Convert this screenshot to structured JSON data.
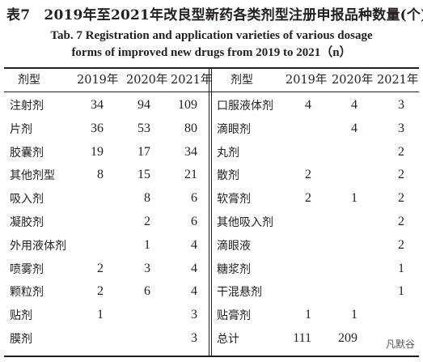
{
  "title_cn": "表7　2019年至2021年改良型新药各类剂型注册申报品种数量(个)",
  "title_en_line1": "Tab. 7   Registration and application varieties of various dosage",
  "title_en_line2": "forms of improved new drugs from 2019 to 2021（n）",
  "headers": {
    "form": "剂型",
    "y2019": "2019年",
    "y2020": "2020年",
    "y2021": "2021年"
  },
  "left_rows": [
    {
      "name": "注射剂",
      "v2019": "34",
      "v2020": "94",
      "v2021": "109"
    },
    {
      "name": "片剂",
      "v2019": "36",
      "v2020": "53",
      "v2021": "80"
    },
    {
      "name": "胶囊剂",
      "v2019": "19",
      "v2020": "17",
      "v2021": "34"
    },
    {
      "name": "其他剂型",
      "v2019": "8",
      "v2020": "15",
      "v2021": "21"
    },
    {
      "name": "吸入剂",
      "v2019": "",
      "v2020": "8",
      "v2021": "6"
    },
    {
      "name": "凝胶剂",
      "v2019": "",
      "v2020": "2",
      "v2021": "6"
    },
    {
      "name": "外用液体剂",
      "v2019": "",
      "v2020": "1",
      "v2021": "4"
    },
    {
      "name": "喷雾剂",
      "v2019": "2",
      "v2020": "3",
      "v2021": "4"
    },
    {
      "name": "颗粒剂",
      "v2019": "2",
      "v2020": "6",
      "v2021": "4"
    },
    {
      "name": "贴剂",
      "v2019": "1",
      "v2020": "",
      "v2021": "3"
    },
    {
      "name": "膜剂",
      "v2019": "",
      "v2020": "",
      "v2021": "3"
    }
  ],
  "right_rows": [
    {
      "name": "口服液体剂",
      "v2019": "4",
      "v2020": "4",
      "v2021": "3"
    },
    {
      "name": "滴眼剂",
      "v2019": "",
      "v2020": "4",
      "v2021": "3"
    },
    {
      "name": "丸剂",
      "v2019": "",
      "v2020": "",
      "v2021": "2"
    },
    {
      "name": "散剂",
      "v2019": "2",
      "v2020": "",
      "v2021": "2"
    },
    {
      "name": "软膏剂",
      "v2019": "2",
      "v2020": "1",
      "v2021": "2"
    },
    {
      "name": "其他吸入剂",
      "v2019": "",
      "v2020": "",
      "v2021": "2"
    },
    {
      "name": "滴眼液",
      "v2019": "",
      "v2020": "",
      "v2021": "2"
    },
    {
      "name": "糖浆剂",
      "v2019": "",
      "v2020": "",
      "v2021": "1"
    },
    {
      "name": "干混悬剂",
      "v2019": "",
      "v2020": "",
      "v2021": "1"
    },
    {
      "name": "贴膏剂",
      "v2019": "1",
      "v2020": "1",
      "v2021": ""
    },
    {
      "name": "总计",
      "v2019": "111",
      "v2020": "209",
      "v2021": ""
    }
  ],
  "watermark": "凡默谷"
}
